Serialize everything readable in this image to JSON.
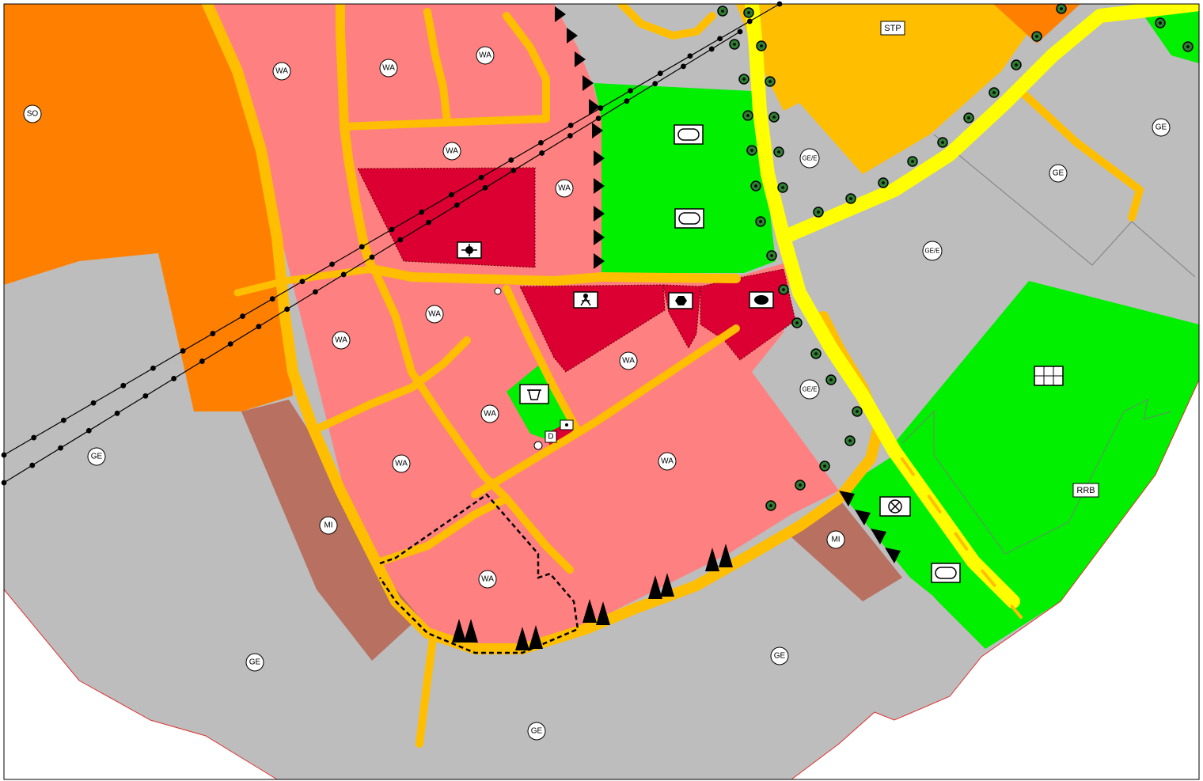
{
  "colors": {
    "residential": "#ff8080",
    "industrial": "#bdbdbd",
    "special": "#ff8000",
    "mixed": "#b87060",
    "community": "#dc0032",
    "green": "#00f000",
    "road": "#ffbf00",
    "main_road": "#ffff00",
    "boundary": "#e03030"
  },
  "labels": {
    "so": "SO",
    "wa": "WA",
    "ge": "GE",
    "gee": "GE/E",
    "mi": "MI",
    "stp": "STP",
    "rrb": "RRB",
    "d": "D"
  },
  "icons": [
    "church-icon",
    "school-icon",
    "cultural-building-icon",
    "playground-icon",
    "sports-field-icon",
    "waste-bin-icon",
    "substation-icon",
    "parking-grid-icon",
    "power-line-icon",
    "tree-row-icon",
    "noise-barrier-icon"
  ]
}
